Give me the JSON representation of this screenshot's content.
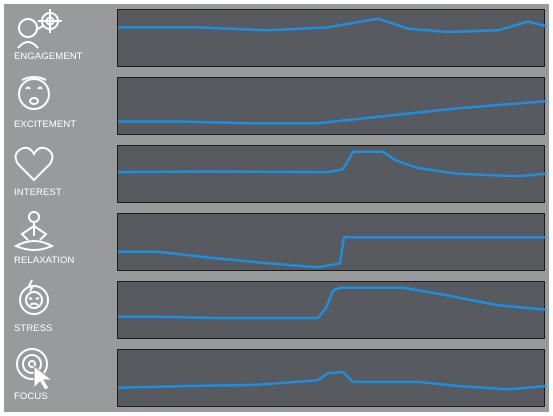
{
  "colors": {
    "line": "#1e8fe0",
    "panel": "#575a5e",
    "background": "#999a9c"
  },
  "metrics": [
    {
      "label": "ENGAGEMENT",
      "icon": "engagement-icon",
      "series": [
        [
          0,
          0.3
        ],
        [
          80,
          0.3
        ],
        [
          150,
          0.35
        ],
        [
          210,
          0.3
        ],
        [
          260,
          0.15
        ],
        [
          290,
          0.32
        ],
        [
          330,
          0.38
        ],
        [
          380,
          0.35
        ],
        [
          410,
          0.2
        ],
        [
          428,
          0.28
        ]
      ]
    },
    {
      "label": "EXCITEMENT",
      "icon": "excitement-icon",
      "series": [
        [
          0,
          0.75
        ],
        [
          60,
          0.75
        ],
        [
          130,
          0.78
        ],
        [
          200,
          0.78
        ],
        [
          270,
          0.65
        ],
        [
          340,
          0.52
        ],
        [
          428,
          0.4
        ]
      ]
    },
    {
      "label": "INTEREST",
      "icon": "interest-icon",
      "series": [
        [
          0,
          0.45
        ],
        [
          90,
          0.44
        ],
        [
          210,
          0.45
        ],
        [
          225,
          0.4
        ],
        [
          235,
          0.1
        ],
        [
          265,
          0.1
        ],
        [
          278,
          0.25
        ],
        [
          300,
          0.38
        ],
        [
          340,
          0.48
        ],
        [
          400,
          0.52
        ],
        [
          428,
          0.48
        ]
      ]
    },
    {
      "label": "RELAXATION",
      "icon": "relaxation-icon",
      "series": [
        [
          0,
          0.65
        ],
        [
          40,
          0.65
        ],
        [
          90,
          0.75
        ],
        [
          150,
          0.85
        ],
        [
          200,
          0.92
        ],
        [
          222,
          0.85
        ],
        [
          226,
          0.4
        ],
        [
          428,
          0.4
        ]
      ]
    },
    {
      "label": "STRESS",
      "icon": "stress-icon",
      "series": [
        [
          0,
          0.6
        ],
        [
          40,
          0.6
        ],
        [
          100,
          0.62
        ],
        [
          200,
          0.62
        ],
        [
          208,
          0.45
        ],
        [
          215,
          0.15
        ],
        [
          222,
          0.1
        ],
        [
          285,
          0.1
        ],
        [
          320,
          0.2
        ],
        [
          380,
          0.4
        ],
        [
          428,
          0.48
        ]
      ]
    },
    {
      "label": "FOCUS",
      "icon": "focus-icon",
      "series": [
        [
          0,
          0.65
        ],
        [
          70,
          0.62
        ],
        [
          140,
          0.6
        ],
        [
          200,
          0.52
        ],
        [
          210,
          0.4
        ],
        [
          225,
          0.38
        ],
        [
          235,
          0.55
        ],
        [
          300,
          0.55
        ],
        [
          340,
          0.62
        ],
        [
          390,
          0.68
        ],
        [
          428,
          0.62
        ]
      ]
    }
  ]
}
